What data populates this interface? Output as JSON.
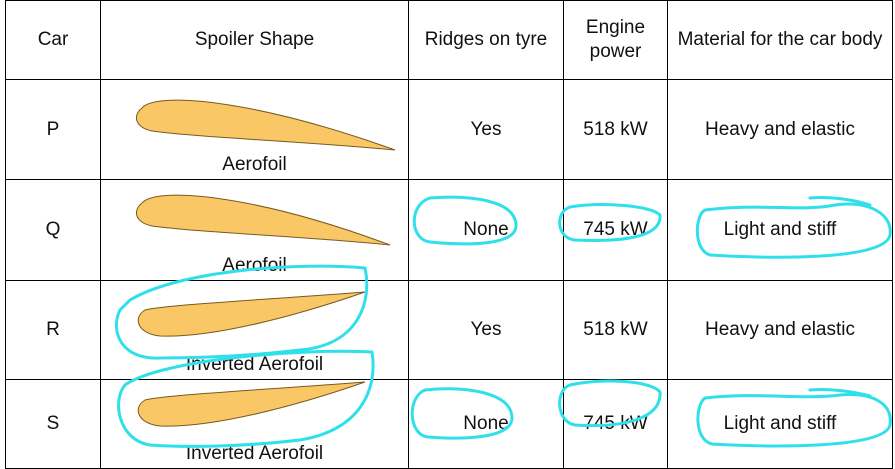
{
  "table": {
    "header": [
      "Car",
      "Spoiler Shape",
      "Ridges on tyre",
      "Engine power",
      "Material for the car body"
    ],
    "rows": [
      [
        "P",
        "Aerofoil",
        "Yes",
        "518 kW",
        "Heavy and elastic"
      ],
      [
        "Q",
        "Aerofoil",
        "None",
        "745 kW",
        "Light and stiff"
      ],
      [
        "R",
        "Inverted Aerofoil",
        "Yes",
        "518 kW",
        "Heavy and elastic"
      ],
      [
        "S",
        "Inverted Aerofoil",
        "None",
        "745 kW",
        "Light and stiff"
      ]
    ]
  }
}
